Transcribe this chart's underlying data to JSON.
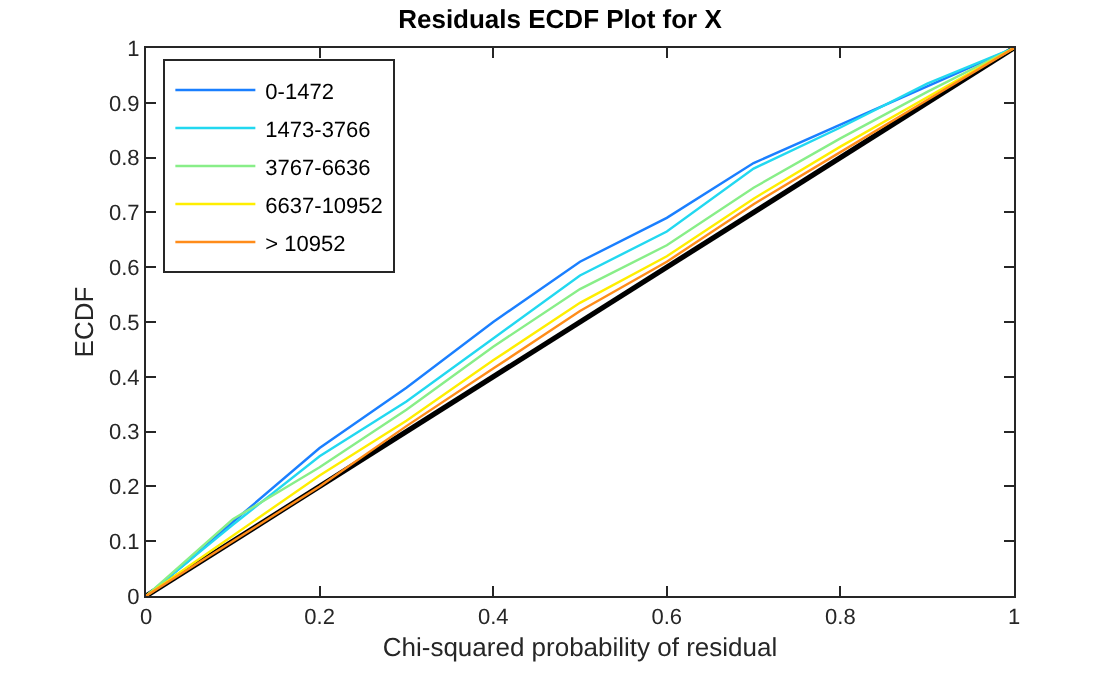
{
  "chart_data": {
    "type": "line",
    "title": "Residuals ECDF Plot for X",
    "xlabel": "Chi-squared probability of residual",
    "ylabel": "ECDF",
    "x": [
      0,
      0.05,
      0.1,
      0.2,
      0.3,
      0.4,
      0.5,
      0.6,
      0.7,
      0.8,
      0.9,
      1
    ],
    "series": [
      {
        "color": "#000000",
        "x": [
          0,
          1
        ],
        "values": [
          0,
          1
        ]
      },
      {
        "name": "0-1472",
        "color": "#1a7fff",
        "values": [
          0,
          0.065,
          0.135,
          0.27,
          0.38,
          0.5,
          0.61,
          0.69,
          0.79,
          0.86,
          0.93,
          1
        ]
      },
      {
        "name": "1473-3766",
        "color": "#22d8f0",
        "values": [
          0,
          0.065,
          0.13,
          0.255,
          0.355,
          0.47,
          0.585,
          0.665,
          0.78,
          0.855,
          0.935,
          1
        ]
      },
      {
        "name": "3767-6636",
        "color": "#88ee88",
        "values": [
          0,
          0.07,
          0.14,
          0.235,
          0.34,
          0.455,
          0.56,
          0.64,
          0.745,
          0.835,
          0.92,
          1
        ]
      },
      {
        "name": "6637-10952",
        "color": "#ffee00",
        "values": [
          0,
          0.055,
          0.11,
          0.22,
          0.32,
          0.43,
          0.535,
          0.62,
          0.725,
          0.82,
          0.91,
          1
        ]
      },
      {
        "name": "> 10952",
        "color": "#ff8c1a",
        "values": [
          0,
          0.05,
          0.1,
          0.2,
          0.31,
          0.415,
          0.52,
          0.61,
          0.715,
          0.81,
          0.905,
          1
        ]
      }
    ],
    "xlim": [
      0,
      1
    ],
    "ylim": [
      0,
      1
    ],
    "xticks": [
      0,
      0.2,
      0.4,
      0.6,
      0.8,
      1
    ],
    "yticks": [
      0,
      0.1,
      0.2,
      0.3,
      0.4,
      0.5,
      0.6,
      0.7,
      0.8,
      0.9,
      1
    ],
    "grid": false,
    "legend": "top left",
    "marker": "none",
    "line_style": "solid"
  }
}
